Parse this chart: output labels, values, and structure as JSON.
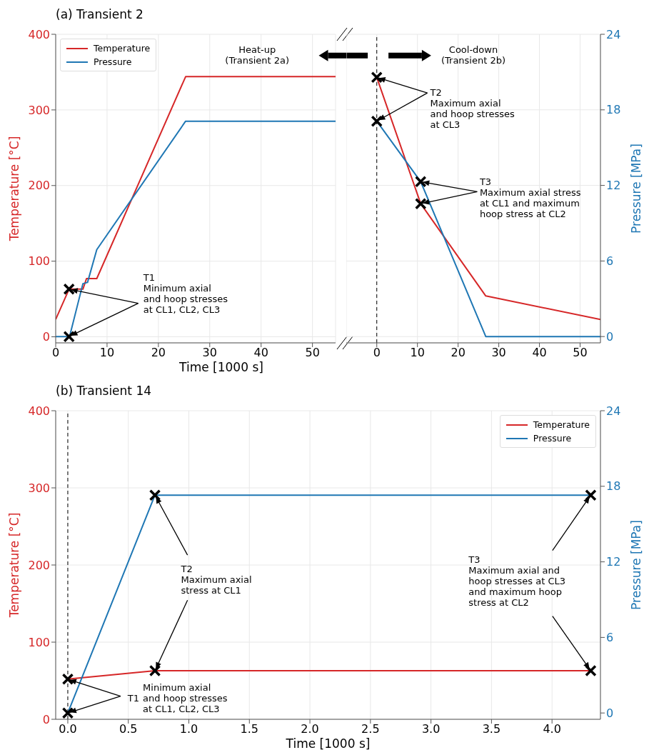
{
  "chart_data": [
    {
      "type": "line",
      "title": "(a) Transient 2",
      "xlabel": "Time [1000 s]",
      "ylabel": "Temperature [°C]",
      "xlim": [
        0,
        54.5
      ],
      "xticks": [
        0,
        10,
        20,
        30,
        40,
        50
      ],
      "ylim": [
        -8,
        400
      ],
      "yticks": [
        0,
        100,
        200,
        300,
        400
      ],
      "y2lim": [
        -0.5,
        24
      ],
      "grid": true,
      "legend": "top left",
      "annotations": [
        "Heat-up\n(Transient 2a)",
        {
          "text": "T1\nMinimum axial\nand hoop stresses\nat CL1, CL2, CL3",
          "x": 2.6,
          "y": 63
        }
      ],
      "series": [
        {
          "name": "Temperature",
          "color": "#d62728",
          "x": [
            0,
            2.6,
            5.3,
            6,
            8,
            25.3,
            54.5
          ],
          "values": [
            23,
            63,
            63,
            77,
            77,
            344,
            344
          ]
        },
        {
          "name": "Pressure",
          "color": "#1f77b4",
          "axis": "y2",
          "x": [
            0,
            2.7,
            5.3,
            6.2,
            8,
            25.3,
            54.5
          ],
          "values": [
            0,
            0,
            4.2,
            4.3,
            6.9,
            17.1,
            17.1
          ]
        },
        {
          "type": "scatter",
          "marker": "cross",
          "color": "#000000",
          "x": [
            2.6
          ],
          "values": [
            63
          ]
        },
        {
          "type": "scatter",
          "marker": "cross",
          "color": "#000000",
          "axis": "y2",
          "x": [
            2.6
          ],
          "values": [
            0
          ]
        }
      ]
    },
    {
      "type": "line",
      "y2label": "Pressure [MPa]",
      "xlim": [
        -7.5,
        55
      ],
      "xticks": [
        0,
        10,
        20,
        30,
        40,
        50
      ],
      "ylim": [
        -8,
        400
      ],
      "y2lim": [
        -0.5,
        24
      ],
      "y2ticks": [
        0,
        6,
        12,
        18,
        24
      ],
      "grid": true,
      "ref_lines": [
        {
          "axis": "x",
          "value": 0,
          "color": "#000000",
          "line_style": "dashed"
        }
      ],
      "annotations": [
        "Cool-down\n(Transient 2b)",
        {
          "text": "T2\nMaximum axial\nand hoop stresses\nat CL3",
          "x": 0,
          "y": 343
        },
        {
          "text": "T3\nMaximum axial stress\nat CL1 and maximum\nhoop stress at CL2",
          "x": 10.8,
          "y": 176
        }
      ],
      "series": [
        {
          "color": "#d62728",
          "x": [
            0,
            10.8,
            26.8,
            55
          ],
          "values": [
            343,
            176,
            54,
            23
          ]
        },
        {
          "color": "#1f77b4",
          "axis": "y2",
          "x": [
            0,
            10.8,
            26.8,
            55
          ],
          "values": [
            17.1,
            12.3,
            0,
            0
          ]
        },
        {
          "type": "scatter",
          "marker": "cross",
          "color": "#000000",
          "x": [
            0,
            10.8
          ],
          "values": [
            343,
            176
          ]
        },
        {
          "type": "scatter",
          "marker": "cross",
          "color": "#000000",
          "axis": "y2",
          "x": [
            0,
            10.8
          ],
          "values": [
            17.1,
            12.3
          ]
        }
      ]
    },
    {
      "type": "line",
      "title": "(b) Transient 14",
      "xlabel": "Time [1000 s]",
      "ylabel": "Temperature [°C]",
      "y2label": "Pressure [MPa]",
      "xlim": [
        -0.1,
        4.4
      ],
      "xticks": [
        {
          "value": 0,
          "label": "0.0"
        },
        {
          "value": 0.5,
          "label": "0.5"
        },
        {
          "value": 1,
          "label": "1.0"
        },
        {
          "value": 1.5,
          "label": "1.5"
        },
        {
          "value": 2,
          "label": "2.0"
        },
        {
          "value": 2.5,
          "label": "2.5"
        },
        {
          "value": 3,
          "label": "3.0"
        },
        {
          "value": 3.5,
          "label": "3.5"
        },
        {
          "value": 4,
          "label": "4.0"
        }
      ],
      "ylim": [
        0,
        400
      ],
      "yticks": [
        0,
        100,
        200,
        300,
        400
      ],
      "y2lim": [
        -0.5,
        24
      ],
      "y2ticks": [
        0,
        6,
        12,
        18,
        24
      ],
      "grid": true,
      "legend": "top right",
      "ref_lines": [
        {
          "axis": "x",
          "value": 0,
          "color": "#000000",
          "line_style": "dashed"
        }
      ],
      "annotations": [
        {
          "text": "T1\nMinimum axial\nand hoop stresses\nat CL1, CL2, CL3",
          "x": 0,
          "y": 52
        },
        {
          "text": "T2\nMaximum axial\nstress at CL1",
          "x": 0.72,
          "y": 63
        },
        {
          "text": "T3\nMaximum axial and\nhoop stresses at CL3\nand maximum hoop\nstress at CL2",
          "x": 4.32,
          "y": 63
        }
      ],
      "series": [
        {
          "name": "Temperature",
          "color": "#d62728",
          "x": [
            0,
            0.72,
            4.32
          ],
          "values": [
            52,
            63,
            63
          ]
        },
        {
          "name": "Pressure",
          "color": "#1f77b4",
          "axis": "y2",
          "x": [
            0,
            0.72,
            4.32
          ],
          "values": [
            0,
            17.3,
            17.3
          ]
        },
        {
          "type": "scatter",
          "marker": "cross",
          "color": "#000000",
          "x": [
            0,
            0.72,
            4.32
          ],
          "values": [
            52,
            63,
            63
          ]
        },
        {
          "type": "scatter",
          "marker": "cross",
          "color": "#000000",
          "axis": "y2",
          "x": [
            0,
            0.72,
            4.32
          ],
          "values": [
            0,
            17.3,
            17.3
          ]
        }
      ]
    }
  ]
}
